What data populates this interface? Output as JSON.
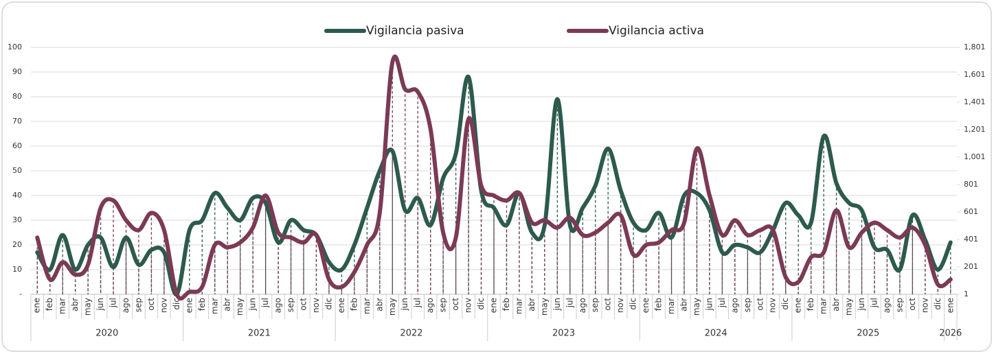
{
  "chart_data": {
    "type": "line",
    "categories": [
      "ene",
      "feb",
      "mar",
      "abr",
      "may",
      "jun",
      "jul",
      "ago",
      "sep",
      "oct",
      "nov",
      "dic",
      "ene",
      "feb",
      "mar",
      "abr",
      "may",
      "jun",
      "jul",
      "ago",
      "sep",
      "oct",
      "nov",
      "dic",
      "ene",
      "feb",
      "mar",
      "abr",
      "may",
      "jun",
      "jul",
      "ago",
      "sep",
      "oct",
      "nov",
      "dic",
      "ene",
      "feb",
      "mar",
      "abr",
      "may",
      "jun",
      "jul",
      "ago",
      "sep",
      "oct",
      "nov",
      "dic",
      "ene",
      "feb",
      "mar",
      "abr",
      "may",
      "jun",
      "jul",
      "ago",
      "sep",
      "oct",
      "nov",
      "dic",
      "ene",
      "feb",
      "mar",
      "abr",
      "may",
      "jun",
      "jul",
      "ago",
      "sep",
      "oct",
      "nov",
      "dic",
      "ene"
    ],
    "years": [
      "2020",
      "2020",
      "2020",
      "2020",
      "2020",
      "2020",
      "2020",
      "2020",
      "2020",
      "2020",
      "2020",
      "2020",
      "2021",
      "2021",
      "2021",
      "2021",
      "2021",
      "2021",
      "2021",
      "2021",
      "2021",
      "2021",
      "2021",
      "2021",
      "2022",
      "2022",
      "2022",
      "2022",
      "2022",
      "2022",
      "2022",
      "2022",
      "2022",
      "2022",
      "2022",
      "2022",
      "2023",
      "2023",
      "2023",
      "2023",
      "2023",
      "2023",
      "2023",
      "2023",
      "2023",
      "2023",
      "2023",
      "2023",
      "2024",
      "2024",
      "2024",
      "2024",
      "2024",
      "2024",
      "2024",
      "2024",
      "2024",
      "2024",
      "2024",
      "2024",
      "2025",
      "2025",
      "2025",
      "2025",
      "2025",
      "2025",
      "2025",
      "2025",
      "2025",
      "2025",
      "2025",
      "2025",
      "2026"
    ],
    "series": [
      {
        "name": "Vigilancia pasiva",
        "color": "#2e5a4e",
        "axis": "y",
        "values": [
          17,
          10,
          24,
          10,
          20,
          23,
          11,
          23,
          12,
          18,
          17,
          0,
          26,
          30,
          41,
          35,
          30,
          39,
          37,
          21,
          30,
          26,
          24,
          13,
          10,
          20,
          35,
          50,
          58,
          34,
          39,
          28,
          47,
          57,
          88,
          42,
          35,
          28,
          41,
          25,
          28,
          79,
          28,
          35,
          44,
          59,
          42,
          29,
          26,
          33,
          23,
          40,
          41,
          34,
          17,
          20,
          19,
          17,
          26,
          37,
          32,
          29,
          64,
          45,
          37,
          34,
          19,
          18,
          10,
          32,
          22,
          10,
          21
        ]
      },
      {
        "name": "Vigilancia activa",
        "color": "#7b3a55",
        "axis": "y2",
        "values": [
          415,
          109,
          235,
          145,
          217,
          631,
          685,
          541,
          469,
          595,
          469,
          1,
          19,
          55,
          361,
          343,
          379,
          487,
          721,
          451,
          415,
          379,
          433,
          109,
          55,
          163,
          361,
          595,
          1693,
          1495,
          1477,
          1207,
          451,
          415,
          1279,
          793,
          721,
          685,
          739,
          523,
          541,
          487,
          559,
          433,
          451,
          523,
          577,
          289,
          361,
          379,
          469,
          523,
          1063,
          721,
          433,
          541,
          433,
          469,
          469,
          127,
          91,
          271,
          307,
          613,
          343,
          451,
          523,
          469,
          415,
          487,
          361,
          73,
          109
        ]
      }
    ],
    "ylim": [
      0,
      100
    ],
    "yticks": [
      {
        "value": 0,
        "label": "-"
      },
      10,
      20,
      30,
      40,
      50,
      60,
      70,
      80,
      90,
      100
    ],
    "y2lim": [
      1,
      1801
    ],
    "y2ticks": [
      1,
      201,
      401,
      601,
      801,
      {
        "value": 1001,
        "label": "1,001"
      },
      {
        "value": 1201,
        "label": "1,201"
      },
      {
        "value": 1401,
        "label": "1,401"
      },
      {
        "value": 1601,
        "label": "1,601"
      },
      {
        "value": 1801,
        "label": "1,801"
      }
    ],
    "grid": true,
    "legend": "top"
  }
}
